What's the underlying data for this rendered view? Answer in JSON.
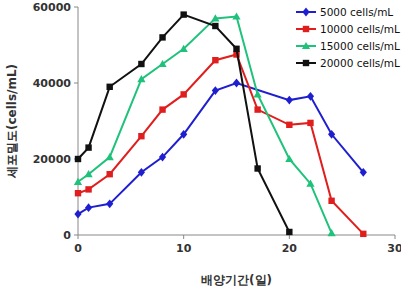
{
  "chart_data": {
    "type": "line",
    "x_label": "배양기간(일)",
    "y_label": "세포밀도(cells/mL)",
    "xlim": [
      0,
      30
    ],
    "xticks": [
      0,
      10,
      20,
      30
    ],
    "ylim": [
      0,
      60000
    ],
    "yticks": [
      0,
      20000,
      40000,
      60000
    ],
    "grid": false,
    "legend": "top-right",
    "series": [
      {
        "name": "5000 cells/mL",
        "color": "#1f1fd0",
        "marker": "diamond",
        "x": [
          0,
          1,
          3,
          6,
          8,
          10,
          13,
          15,
          20,
          22,
          24,
          27
        ],
        "values": [
          5500,
          7200,
          8200,
          16500,
          20500,
          26500,
          38000,
          40000,
          35500,
          36500,
          26500,
          16500
        ]
      },
      {
        "name": "10000 cells/mL",
        "color": "#e01e1e",
        "marker": "square",
        "x": [
          0,
          1,
          3,
          6,
          8,
          10,
          13,
          15,
          17,
          20,
          22,
          24,
          27
        ],
        "values": [
          11000,
          12000,
          16000,
          26000,
          33000,
          37000,
          46000,
          47500,
          33000,
          29000,
          29500,
          9000,
          300
        ]
      },
      {
        "name": "15000 cells/mL",
        "color": "#1fc27a",
        "marker": "triangle",
        "x": [
          0,
          1,
          3,
          6,
          8,
          10,
          13,
          15,
          17,
          20,
          22,
          24
        ],
        "values": [
          14000,
          16000,
          20500,
          41000,
          45000,
          49000,
          57000,
          57500,
          37000,
          20000,
          13500,
          500
        ]
      },
      {
        "name": "20000 cells/mL",
        "color": "#111111",
        "marker": "square",
        "x": [
          0,
          1,
          3,
          6,
          8,
          10,
          13,
          15,
          17,
          20
        ],
        "values": [
          20000,
          23000,
          39000,
          45000,
          52000,
          58000,
          55000,
          49000,
          17500,
          800
        ]
      }
    ]
  }
}
